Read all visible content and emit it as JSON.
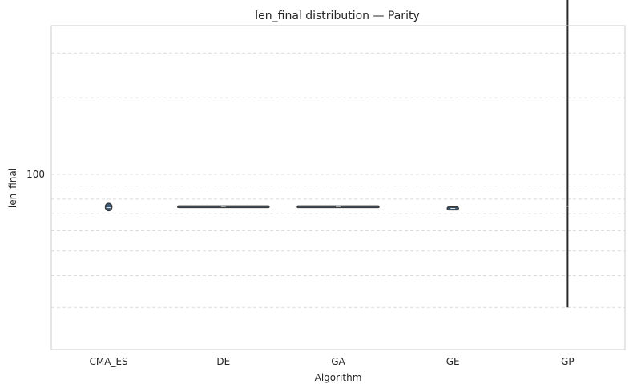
{
  "chart_data": {
    "type": "violin",
    "title": "len_final distribution — Parity",
    "xlabel": "Algorithm",
    "ylabel": "len_final",
    "y_scale": "log",
    "ylim": [
      25,
      700
    ],
    "grid": true,
    "categories": [
      "CMA_ES",
      "DE",
      "GA",
      "GE",
      "GP"
    ],
    "y_ticks": [
      100
    ],
    "series": [
      {
        "category": "CMA_ES",
        "min": 72,
        "max": 77,
        "median": 74
      },
      {
        "category": "DE",
        "min": 74.3,
        "max": 75.2,
        "median": 74.8
      },
      {
        "category": "GA",
        "min": 74.3,
        "max": 75.2,
        "median": 74.8
      },
      {
        "category": "GE",
        "min": 72.5,
        "max": 74.5,
        "median": 73.5
      },
      {
        "category": "GP",
        "min": 30,
        "max": 600,
        "median": 75
      }
    ],
    "colors": {
      "fill": "#3a5a77",
      "edge": "#3b3b3b",
      "grid": "#dcdcdc",
      "frame": "#cccccc"
    }
  }
}
